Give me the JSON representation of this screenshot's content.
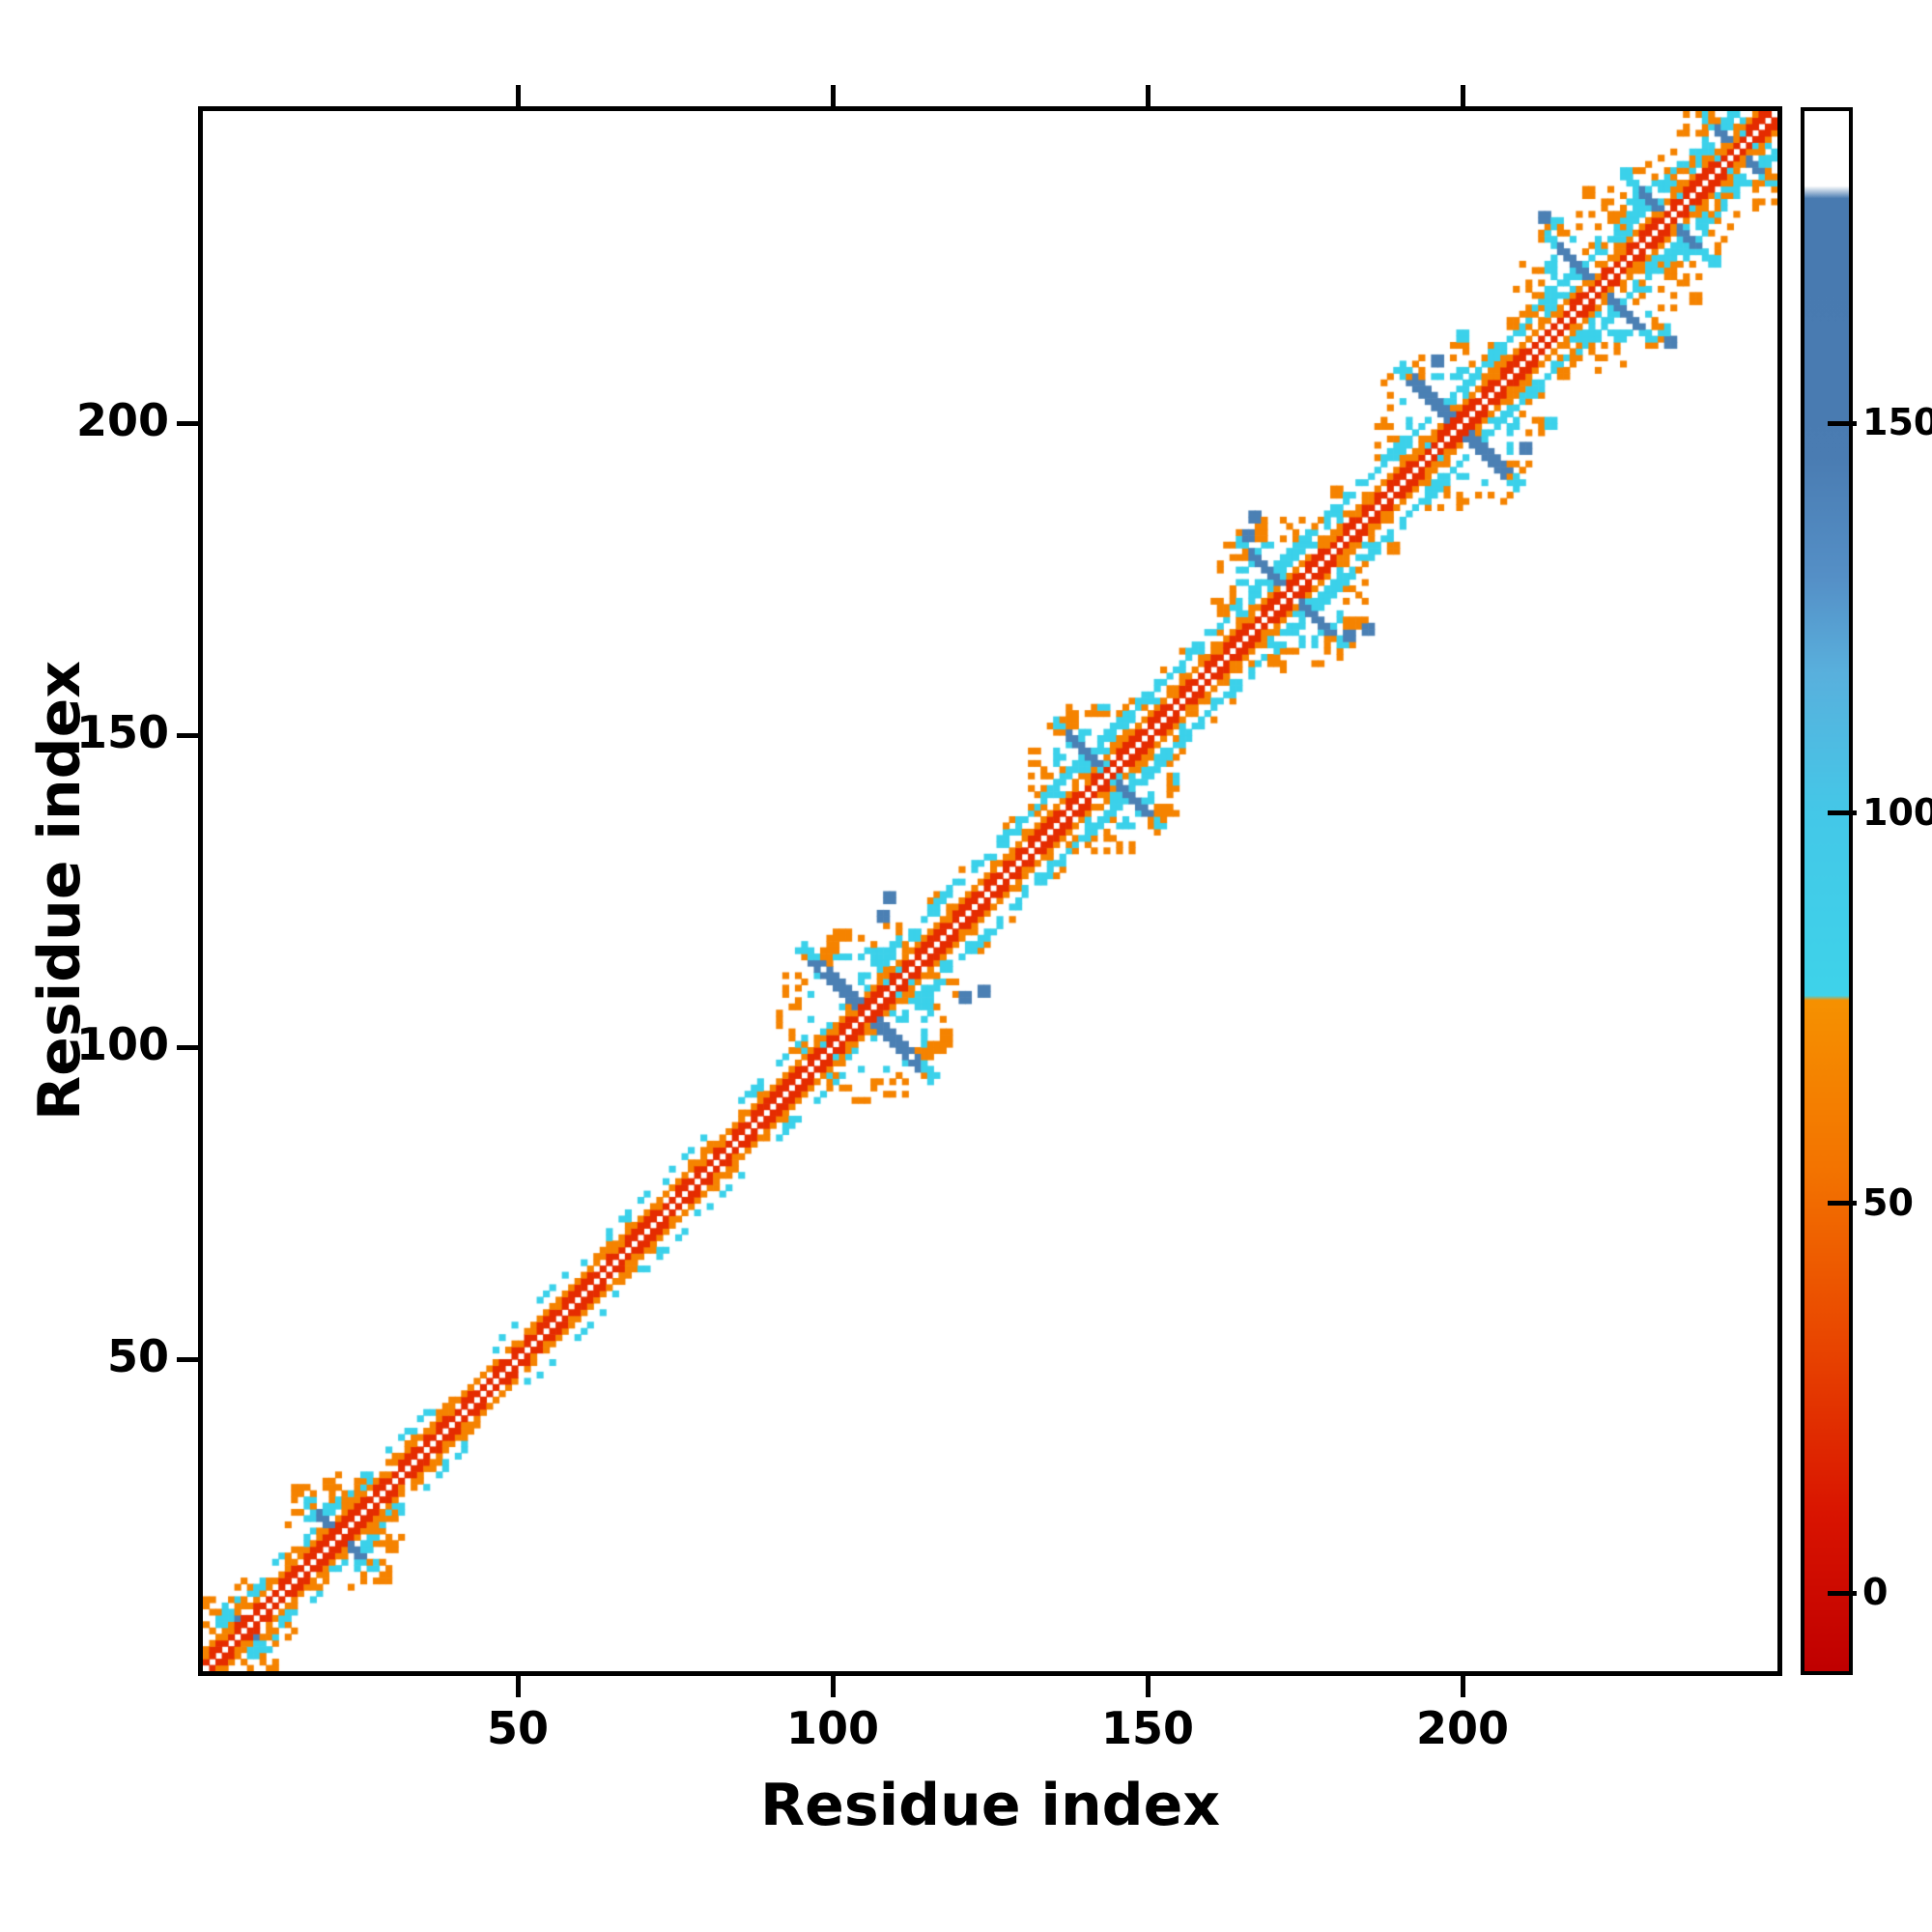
{
  "figure": {
    "background": "#ffffff",
    "axis_color": "#000000"
  },
  "chart_data": {
    "type": "heatmap",
    "title": "",
    "xlabel": "Residue index",
    "ylabel": "Residue index",
    "x_range": [
      0,
      250
    ],
    "y_range": [
      0,
      250
    ],
    "x_ticks": [
      50,
      100,
      150,
      200
    ],
    "y_ticks": [
      50,
      100,
      150,
      200
    ],
    "grid": "off",
    "legend": "colorbar-right",
    "n_residues": 250,
    "description": "Symmetric residue-residue contact map: narrow multicolor band along the main diagonal (red closest to diagonal, orange next, cyan outermost) with steel-blue anti-diagonal cross clusters at several sequence positions",
    "palette": {
      "red": "#e52c00",
      "orange": "#f58300",
      "cyan": "#3bd1ea",
      "blue": "#4b80b4"
    },
    "colorbar": {
      "range": [
        -10,
        190
      ],
      "ticks": [
        0,
        50,
        100,
        150
      ],
      "stops": [
        [
          0.0,
          "#c00000"
        ],
        [
          0.1,
          "#d91400"
        ],
        [
          0.22,
          "#ea4a00"
        ],
        [
          0.32,
          "#f37300"
        ],
        [
          0.43,
          "#f69100"
        ],
        [
          0.433,
          "#3ed3ea"
        ],
        [
          0.55,
          "#44c8e8"
        ],
        [
          0.64,
          "#59b0dd"
        ],
        [
          0.7,
          "#5590c7"
        ],
        [
          0.78,
          "#4a7cb2"
        ],
        [
          0.944,
          "#487ab0"
        ],
        [
          0.952,
          "#ffffff"
        ],
        [
          1.0,
          "#ffffff"
        ]
      ]
    },
    "diagonal_band": [
      {
        "offset": 1,
        "color": "red",
        "density": 1.0,
        "range": [
          1,
          250
        ]
      },
      {
        "offset": 2,
        "color": "red",
        "density": 0.6,
        "range": [
          1,
          250
        ]
      },
      {
        "offset": 2,
        "color": "orange",
        "density": 0.4,
        "range": [
          1,
          250
        ]
      },
      {
        "offset": 3,
        "color": "orange",
        "density": 0.95,
        "range": [
          1,
          250
        ]
      },
      {
        "offset": 4,
        "color": "orange",
        "density": 0.3,
        "range": [
          1,
          250
        ]
      },
      {
        "offset": 5,
        "color": "cyan",
        "density": 0.2,
        "range": [
          1,
          250
        ]
      },
      {
        "offset": 6,
        "color": "cyan",
        "density": 0.45,
        "range": [
          1,
          105
        ]
      },
      {
        "offset": 6,
        "color": "cyan",
        "density": 0.8,
        "range": [
          105,
          250
        ]
      },
      {
        "offset": 7,
        "color": "cyan",
        "density": 0.5,
        "range": [
          105,
          250
        ]
      },
      {
        "offset": 8,
        "color": "orange",
        "density": 0.12,
        "range": [
          110,
          250
        ]
      }
    ],
    "clusters": [
      {
        "center": 7,
        "size": 3
      },
      {
        "center": 22,
        "size": 5
      },
      {
        "center": 106,
        "size": 10
      },
      {
        "center": 144,
        "size": 8
      },
      {
        "center": 173,
        "size": 8
      },
      {
        "center": 200,
        "size": 9
      },
      {
        "center": 222,
        "size": 8
      },
      {
        "center": 233,
        "size": 6
      },
      {
        "center": 244,
        "size": 5
      }
    ],
    "satellites": [
      {
        "x": 27,
        "y": 17,
        "color": "cyan"
      },
      {
        "x": 29,
        "y": 15,
        "color": "orange"
      },
      {
        "x": 114,
        "y": 99,
        "color": "orange"
      },
      {
        "x": 116,
        "y": 100,
        "color": "orange"
      },
      {
        "x": 118,
        "y": 101,
        "color": "orange"
      },
      {
        "x": 121,
        "y": 108,
        "color": "blue"
      },
      {
        "x": 124,
        "y": 109,
        "color": "blue"
      },
      {
        "x": 118,
        "y": 120,
        "color": "orange"
      },
      {
        "x": 152,
        "y": 138,
        "color": "orange"
      },
      {
        "x": 154,
        "y": 143,
        "color": "cyan"
      },
      {
        "x": 166,
        "y": 179,
        "color": "orange"
      },
      {
        "x": 168,
        "y": 182,
        "color": "orange"
      },
      {
        "x": 182,
        "y": 166,
        "color": "blue"
      },
      {
        "x": 185,
        "y": 167,
        "color": "blue"
      },
      {
        "x": 180,
        "y": 189,
        "color": "orange"
      },
      {
        "x": 193,
        "y": 207,
        "color": "orange"
      },
      {
        "x": 196,
        "y": 210,
        "color": "orange"
      },
      {
        "x": 210,
        "y": 196,
        "color": "blue"
      },
      {
        "x": 214,
        "y": 200,
        "color": "cyan"
      },
      {
        "x": 208,
        "y": 216,
        "color": "orange"
      },
      {
        "x": 215,
        "y": 232,
        "color": "cyan"
      },
      {
        "x": 220,
        "y": 237,
        "color": "cyan"
      },
      {
        "x": 237,
        "y": 220,
        "color": "orange"
      },
      {
        "x": 240,
        "y": 226,
        "color": "cyan"
      },
      {
        "x": 233,
        "y": 213,
        "color": "blue"
      }
    ]
  }
}
